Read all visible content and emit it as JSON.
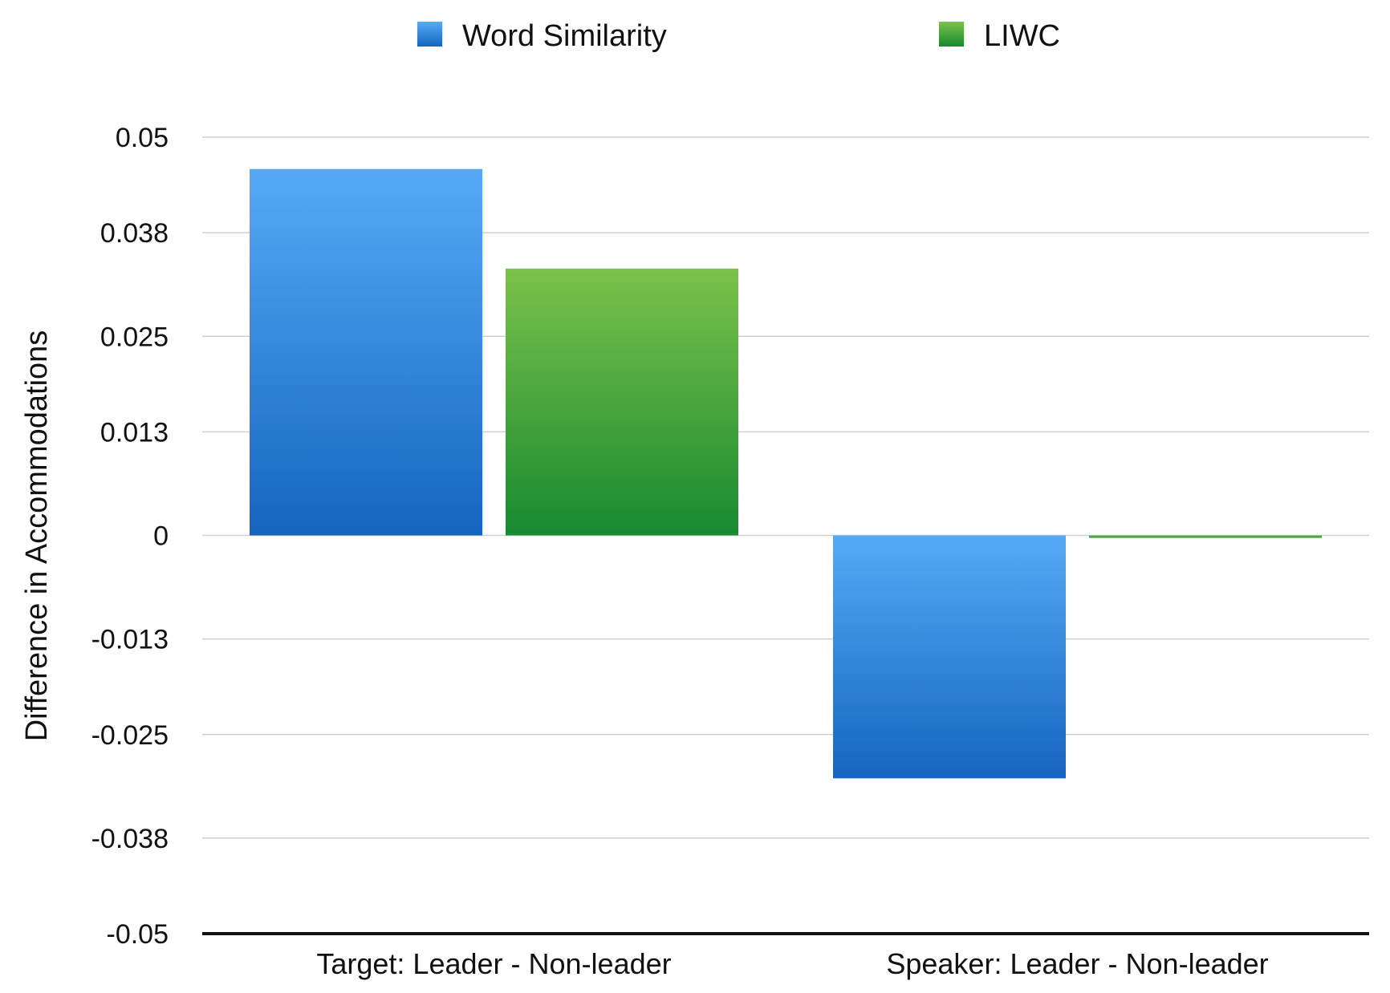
{
  "chart_data": {
    "type": "bar",
    "title": "",
    "xlabel": "",
    "ylabel": "Difference in Accommodations",
    "categories": [
      "Target: Leader - Non-leader",
      "Speaker: Leader - Non-leader"
    ],
    "series": [
      {
        "name": "Word Similarity",
        "values": [
          0.046,
          -0.0305
        ],
        "color": "#2f86dc"
      },
      {
        "name": "LIWC",
        "values": [
          0.0335,
          -0.0003
        ],
        "color": "#3aa13a"
      }
    ],
    "ylim": [
      -0.05,
      0.05
    ],
    "yticks": [
      0.05,
      0.038,
      0.025,
      0.013,
      0,
      -0.013,
      -0.025,
      -0.038,
      -0.05
    ],
    "ytick_labels": [
      "0.05",
      "0.038",
      "0.025",
      "0.013",
      "0",
      "-0.013",
      "-0.025",
      "-0.038",
      "-0.05"
    ],
    "grid": true,
    "legend": "top"
  }
}
